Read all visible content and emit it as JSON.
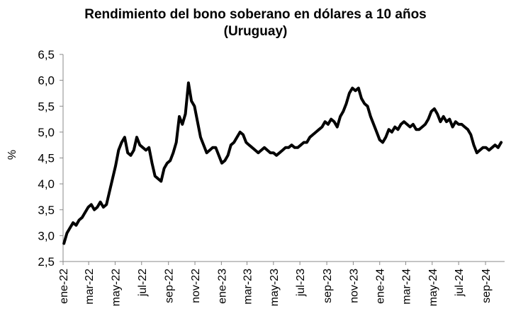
{
  "chart_data": {
    "type": "line",
    "title_line1": "Rendimiento del bono soberano en dólares a 10 años",
    "title_line2": "(Uruguay)",
    "xlabel": "",
    "ylabel": "%",
    "ylim": [
      2.5,
      6.5
    ],
    "yticks": [
      "2,5",
      "3,0",
      "3,5",
      "4,0",
      "4,5",
      "5,0",
      "5,5",
      "6,0",
      "6,5"
    ],
    "xticks": [
      "ene-22",
      "mar-22",
      "may-22",
      "jul-22",
      "sep-22",
      "nov-22",
      "ene-23",
      "mar-23",
      "may-23",
      "jul-23",
      "sep-23",
      "nov-23",
      "ene-24",
      "mar-24",
      "may-24",
      "jul-24",
      "sep-24"
    ],
    "grid": false,
    "legend": "none",
    "line_color": "#000000",
    "series": [
      {
        "x": [
          "2022-01-03",
          "2022-01-10",
          "2022-01-17",
          "2022-01-24",
          "2022-01-31",
          "2022-02-07",
          "2022-02-14",
          "2022-02-21",
          "2022-02-28",
          "2022-03-07",
          "2022-03-14",
          "2022-03-21",
          "2022-03-28",
          "2022-04-04",
          "2022-04-11",
          "2022-04-18",
          "2022-04-25",
          "2022-05-02",
          "2022-05-09",
          "2022-05-16",
          "2022-05-23",
          "2022-05-30",
          "2022-06-06",
          "2022-06-13",
          "2022-06-20",
          "2022-06-27",
          "2022-07-04",
          "2022-07-11",
          "2022-07-18",
          "2022-07-25",
          "2022-08-01",
          "2022-08-08",
          "2022-08-15",
          "2022-08-22",
          "2022-08-29",
          "2022-09-05",
          "2022-09-12",
          "2022-09-19",
          "2022-09-26",
          "2022-10-03",
          "2022-10-10",
          "2022-10-17",
          "2022-10-24",
          "2022-10-31",
          "2022-11-07",
          "2022-11-14",
          "2022-11-21",
          "2022-11-28",
          "2022-12-05",
          "2022-12-12",
          "2022-12-19",
          "2022-12-26",
          "2023-01-02",
          "2023-01-09",
          "2023-01-16",
          "2023-01-23",
          "2023-01-30",
          "2023-02-06",
          "2023-02-13",
          "2023-02-20",
          "2023-02-27",
          "2023-03-06",
          "2023-03-13",
          "2023-03-20",
          "2023-03-27",
          "2023-04-03",
          "2023-04-10",
          "2023-04-17",
          "2023-04-24",
          "2023-05-01",
          "2023-05-08",
          "2023-05-15",
          "2023-05-22",
          "2023-05-29",
          "2023-06-05",
          "2023-06-12",
          "2023-06-19",
          "2023-06-26",
          "2023-07-03",
          "2023-07-10",
          "2023-07-17",
          "2023-07-24",
          "2023-07-31",
          "2023-08-07",
          "2023-08-14",
          "2023-08-21",
          "2023-08-28",
          "2023-09-04",
          "2023-09-11",
          "2023-09-18",
          "2023-09-25",
          "2023-10-02",
          "2023-10-09",
          "2023-10-16",
          "2023-10-23",
          "2023-10-30",
          "2023-11-06",
          "2023-11-13",
          "2023-11-20",
          "2023-11-27",
          "2023-12-04",
          "2023-12-11",
          "2023-12-18",
          "2023-12-25",
          "2024-01-01",
          "2024-01-08",
          "2024-01-15",
          "2024-01-22",
          "2024-01-29",
          "2024-02-05",
          "2024-02-12",
          "2024-02-19",
          "2024-02-26",
          "2024-03-04",
          "2024-03-11",
          "2024-03-18",
          "2024-03-25",
          "2024-04-01",
          "2024-04-08",
          "2024-04-15",
          "2024-04-22",
          "2024-04-29",
          "2024-05-06",
          "2024-05-13",
          "2024-05-20",
          "2024-05-27",
          "2024-06-03",
          "2024-06-10",
          "2024-06-17",
          "2024-06-24",
          "2024-07-01",
          "2024-07-08",
          "2024-07-15",
          "2024-07-22",
          "2024-07-29",
          "2024-08-05",
          "2024-08-12",
          "2024-08-19",
          "2024-08-26",
          "2024-09-02",
          "2024-09-09",
          "2024-09-16",
          "2024-09-23",
          "2024-09-30",
          "2024-10-07"
        ],
        "values": [
          2.85,
          3.05,
          3.15,
          3.25,
          3.2,
          3.3,
          3.35,
          3.45,
          3.55,
          3.6,
          3.5,
          3.55,
          3.65,
          3.55,
          3.6,
          3.85,
          4.1,
          4.35,
          4.65,
          4.8,
          4.9,
          4.6,
          4.55,
          4.65,
          4.9,
          4.75,
          4.7,
          4.65,
          4.7,
          4.4,
          4.15,
          4.1,
          4.05,
          4.3,
          4.4,
          4.45,
          4.6,
          4.8,
          5.3,
          5.15,
          5.35,
          5.95,
          5.6,
          5.5,
          5.2,
          4.9,
          4.75,
          4.6,
          4.65,
          4.7,
          4.7,
          4.55,
          4.4,
          4.45,
          4.55,
          4.75,
          4.8,
          4.9,
          5.0,
          4.95,
          4.8,
          4.75,
          4.7,
          4.65,
          4.6,
          4.65,
          4.7,
          4.65,
          4.6,
          4.6,
          4.55,
          4.6,
          4.65,
          4.7,
          4.7,
          4.75,
          4.7,
          4.7,
          4.75,
          4.8,
          4.8,
          4.9,
          4.95,
          5.0,
          5.05,
          5.1,
          5.2,
          5.15,
          5.25,
          5.2,
          5.1,
          5.3,
          5.4,
          5.55,
          5.75,
          5.85,
          5.8,
          5.85,
          5.65,
          5.55,
          5.5,
          5.3,
          5.15,
          5.0,
          4.85,
          4.8,
          4.9,
          5.05,
          5.0,
          5.1,
          5.05,
          5.15,
          5.2,
          5.15,
          5.1,
          5.15,
          5.05,
          5.05,
          5.1,
          5.15,
          5.25,
          5.4,
          5.45,
          5.35,
          5.2,
          5.3,
          5.2,
          5.25,
          5.1,
          5.2,
          5.15,
          5.15,
          5.1,
          5.05,
          4.95,
          4.75,
          4.6,
          4.65,
          4.7,
          4.7,
          4.65,
          4.7,
          4.75,
          4.7,
          4.8
        ]
      }
    ]
  }
}
